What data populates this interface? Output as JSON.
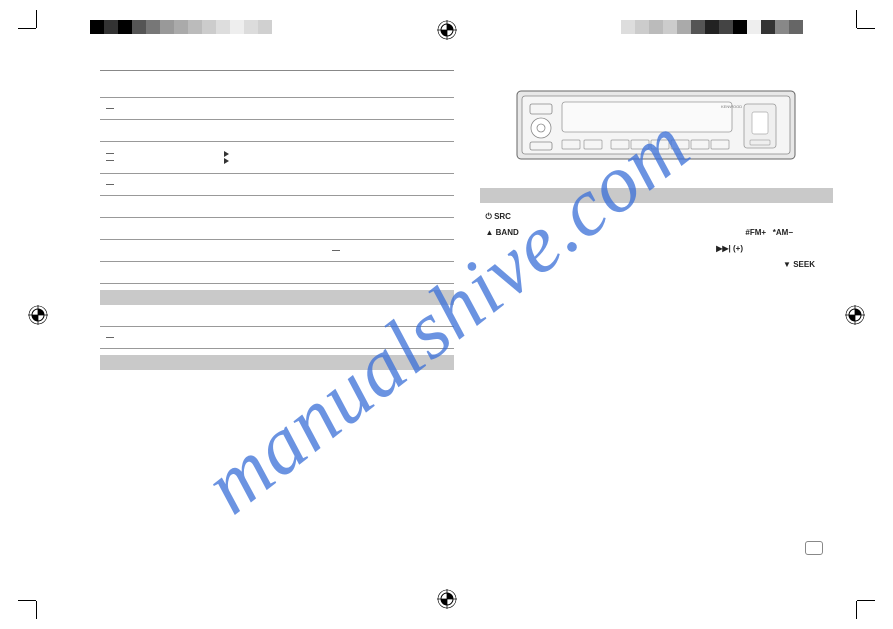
{
  "watermark": "manualshive.com",
  "colorbar_left": [
    "#000000",
    "#333333",
    "#000000",
    "#555555",
    "#777777",
    "#999999",
    "#aaaaaa",
    "#bbbbbb",
    "#cccccc",
    "#dddddd",
    "#eeeeee",
    "#dcdcdc",
    "#d0d0d0"
  ],
  "colorbar_right": [
    "#dddddd",
    "#cccccc",
    "#bbbbbb",
    "#cccccc",
    "#aaaaaa",
    "#555555",
    "#222222",
    "#444444",
    "#000000",
    "#eeeeee",
    "#333333",
    "#888888",
    "#666666"
  ],
  "left_page": {
    "grey1_label": "",
    "grey2_label": ""
  },
  "right_page": {
    "labels": {
      "src": "SRC",
      "band": "BAND",
      "fm": "#FM+",
      "am": "*AM−",
      "fwd": "(+)",
      "seek": "SEEK"
    }
  }
}
